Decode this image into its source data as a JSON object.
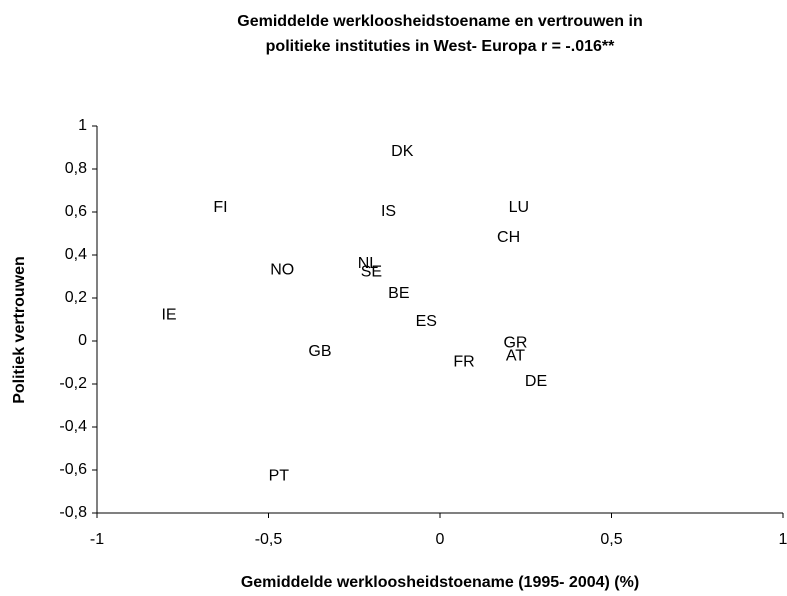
{
  "chart_data": {
    "type": "scatter",
    "title": [
      "Gemiddelde werkloosheidstoename en vertrouwen in",
      "politieke instituties in West- Europa r = -.016**"
    ],
    "x_label": "Gemiddelde werkloosheidstoename (1995- 2004) (%)",
    "y_label": "Politiek vertrouwen",
    "point_labels": [
      "DK",
      "FI",
      "IS",
      "LU",
      "CH",
      "NL",
      "SE",
      "NO",
      "BE",
      "IE",
      "ES",
      "GR",
      "GB",
      "AT",
      "FR",
      "DE",
      "PT"
    ],
    "x": [
      -0.11,
      -0.64,
      -0.15,
      0.23,
      0.2,
      -0.21,
      -0.2,
      -0.46,
      -0.12,
      -0.79,
      -0.04,
      0.22,
      -0.35,
      0.22,
      0.07,
      0.28,
      -0.47
    ],
    "series": [
      {
        "values": [
          0.88,
          0.62,
          0.6,
          0.62,
          0.48,
          0.36,
          0.32,
          0.33,
          0.22,
          0.12,
          0.09,
          -0.01,
          -0.05,
          -0.07,
          -0.1,
          -0.19,
          -0.63
        ]
      }
    ],
    "xlim": [
      -1,
      1
    ],
    "xticks": [
      -1,
      {
        "value": -0.5,
        "label": "-0,5"
      },
      0,
      {
        "value": 0.5,
        "label": "0,5"
      },
      1
    ],
    "ylim": [
      -0.8,
      1
    ],
    "yticks": [
      {
        "value": -0.8,
        "label": "-0,8"
      },
      {
        "value": -0.6,
        "label": "-0,6"
      },
      {
        "value": -0.4,
        "label": "-0,4"
      },
      {
        "value": -0.2,
        "label": "-0,2"
      },
      0,
      {
        "value": 0.2,
        "label": "0,2"
      },
      {
        "value": 0.4,
        "label": "0,4"
      },
      {
        "value": 0.6,
        "label": "0,6"
      },
      {
        "value": 0.8,
        "label": "0,8"
      },
      1
    ],
    "grid": false
  }
}
